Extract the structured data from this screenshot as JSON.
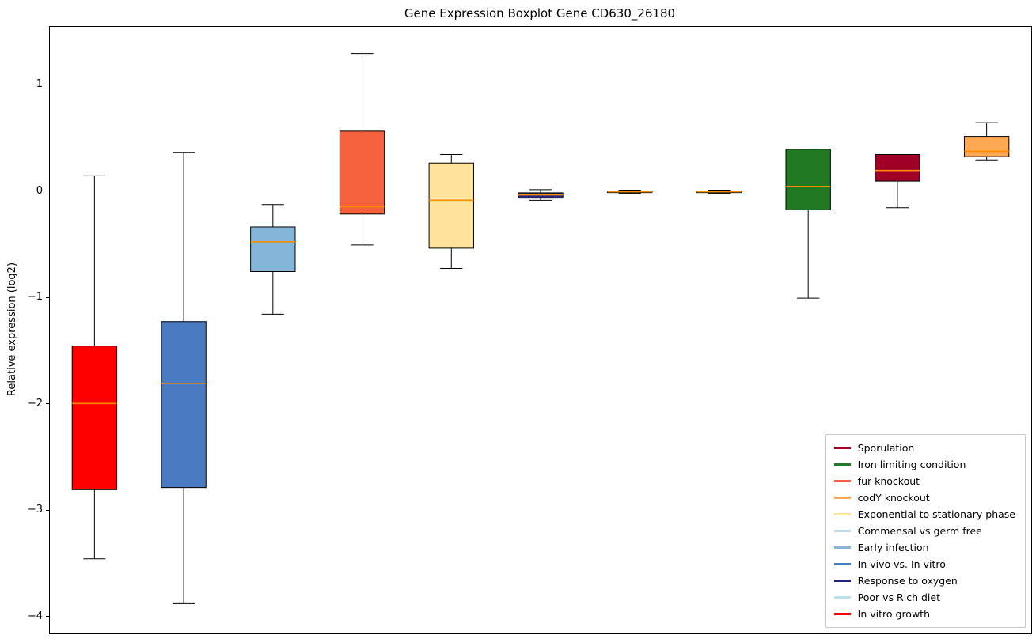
{
  "title": "Gene Expression Boxplot Gene CD630_26180",
  "y_axis": {
    "label": "Relative expression (log2)",
    "ticks": [
      1,
      0,
      -1,
      -2,
      -3,
      -4
    ]
  },
  "chart_data": {
    "type": "boxplot",
    "title": "Gene Expression Boxplot Gene CD630_26180",
    "xlabel": "",
    "ylabel": "Relative expression (log2)",
    "ylim": [
      -4.15,
      1.55
    ],
    "grid": false,
    "median_color": "#ff8c00",
    "box_edge_color": "#000000",
    "series": [
      {
        "name": "In vitro growth",
        "color": "#ff0000",
        "whisker_low": -3.45,
        "q1": -2.8,
        "median": -1.99,
        "q3": -1.45,
        "whisker_high": 0.15
      },
      {
        "name": "In vivo vs. In vitro",
        "color": "#4a7abf",
        "whisker_low": -3.87,
        "q1": -2.78,
        "median": -1.8,
        "q3": -1.22,
        "whisker_high": 0.37
      },
      {
        "name": "Early infection",
        "color": "#85b5d9",
        "whisker_low": -1.15,
        "q1": -0.75,
        "median": -0.47,
        "q3": -0.33,
        "whisker_high": -0.12
      },
      {
        "name": "fur knockout",
        "color": "#f4613c",
        "whisker_low": -0.5,
        "q1": -0.21,
        "median": -0.14,
        "q3": 0.57,
        "whisker_high": 1.3
      },
      {
        "name": "Exponential to stationary phase",
        "color": "#ffe49c",
        "whisker_low": -0.72,
        "q1": -0.53,
        "median": -0.08,
        "q3": 0.27,
        "whisker_high": 0.35
      },
      {
        "name": "Response to oxygen",
        "color": "#23237d",
        "whisker_low": -0.08,
        "q1": -0.06,
        "median": -0.03,
        "q3": -0.01,
        "whisker_high": 0.02
      },
      {
        "name": "Commensal vs germ free",
        "color": "#bcd9ee",
        "whisker_low": -0.015,
        "q1": -0.008,
        "median": 0.0,
        "q3": 0.008,
        "whisker_high": 0.015
      },
      {
        "name": "Poor vs Rich diet",
        "color": "#b9e2ea",
        "whisker_low": -0.015,
        "q1": -0.008,
        "median": 0.0,
        "q3": 0.008,
        "whisker_high": 0.015
      },
      {
        "name": "Iron limiting condition",
        "color": "#217a21",
        "whisker_low": -1.0,
        "q1": -0.17,
        "median": 0.05,
        "q3": 0.4,
        "whisker_high": 0.4
      },
      {
        "name": "Sporulation",
        "color": "#a00026",
        "whisker_low": -0.15,
        "q1": 0.1,
        "median": 0.2,
        "q3": 0.35,
        "whisker_high": 0.35
      },
      {
        "name": "codY knockout",
        "color": "#ffa954",
        "whisker_low": 0.3,
        "q1": 0.33,
        "median": 0.38,
        "q3": 0.52,
        "whisker_high": 0.65
      }
    ],
    "legend": {
      "position": "lower right",
      "items": [
        {
          "label": "Sporulation",
          "color": "#a00026"
        },
        {
          "label": "Iron limiting condition",
          "color": "#217a21"
        },
        {
          "label": "fur knockout",
          "color": "#f4613c"
        },
        {
          "label": "codY knockout",
          "color": "#ffa954"
        },
        {
          "label": "Exponential to stationary phase",
          "color": "#ffe49c"
        },
        {
          "label": "Commensal vs germ free",
          "color": "#bcd9ee"
        },
        {
          "label": "Early infection",
          "color": "#85b5d9"
        },
        {
          "label": "In vivo vs. In vitro",
          "color": "#4a7abf"
        },
        {
          "label": "Response to oxygen",
          "color": "#23237d"
        },
        {
          "label": "Poor vs Rich diet",
          "color": "#b9e2ea"
        },
        {
          "label": "In vitro growth",
          "color": "#ff0000"
        }
      ]
    }
  }
}
